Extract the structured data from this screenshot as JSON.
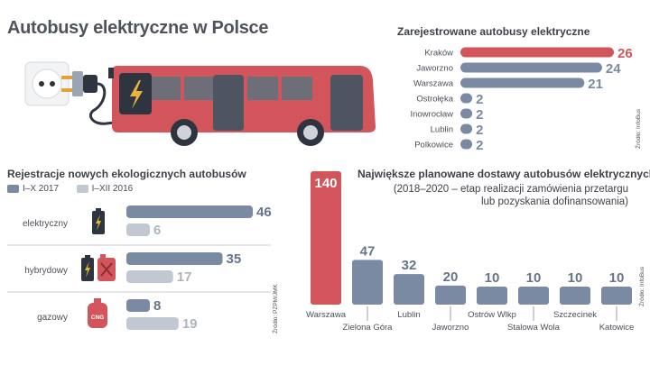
{
  "title": "Autobusy elektryczne w Polsce",
  "colors": {
    "red": "#d2555b",
    "slate": "#7a8aa2",
    "light": "#c2c8d2",
    "text": "#4a4f57"
  },
  "icons": [
    "electric-socket-icon",
    "plug-icon",
    "bus-icon",
    "battery-icon",
    "fuel-canister-icon",
    "gas-cylinder-icon"
  ],
  "chart_data": [
    {
      "type": "bar",
      "orientation": "horizontal",
      "title": "Zarejestrowane autobusy elektryczne",
      "categories": [
        "Kraków",
        "Jaworzno",
        "Warszawa",
        "Ostrołęka",
        "Inowrocław",
        "Lublin",
        "Polkowice"
      ],
      "values": [
        26,
        24,
        21,
        2,
        2,
        2,
        2
      ],
      "highlight": "Kraków",
      "source": "Źródło: InfoBus"
    },
    {
      "type": "bar",
      "orientation": "horizontal",
      "title": "Rejestracje nowych ekologicznych autobusów",
      "categories": [
        "elektryczny",
        "hybrydowy",
        "gazowy"
      ],
      "series": [
        {
          "name": "I–X 2017",
          "values": [
            46,
            35,
            8
          ]
        },
        {
          "name": "I–XII 2016",
          "values": [
            6,
            17,
            19
          ]
        }
      ],
      "source": "Źródło: PZPM/JMK"
    },
    {
      "type": "bar",
      "orientation": "vertical",
      "title": "Największe planowane dostawy autobusów elektrycznych",
      "subtitle_lines": [
        "(2018–2020 – etap realizacji zamówienia przetargu",
        "lub pozyskania dofinansowania)"
      ],
      "categories": [
        "Warszawa",
        "Zielona Góra",
        "Lublin",
        "Jaworzno",
        "Ostrów Wlkp",
        "Stalowa Wola",
        "Szczecinek",
        "Katowice"
      ],
      "values": [
        140,
        47,
        32,
        20,
        10,
        10,
        10,
        10
      ],
      "highlight": "Warszawa",
      "source": "Źródło: InfoBus"
    }
  ],
  "gas_label": "CNG"
}
